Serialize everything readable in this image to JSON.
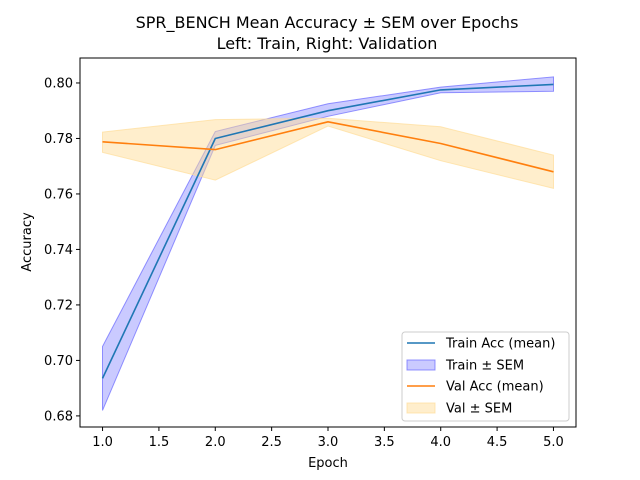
{
  "chart_data": {
    "type": "line",
    "title": "SPR_BENCH Mean Accuracy ± SEM over Epochs",
    "subtitle": "Left: Train, Right: Validation",
    "xlabel": "Epoch",
    "ylabel": "Accuracy",
    "xlim": [
      0.8,
      5.2
    ],
    "ylim": [
      0.676,
      0.809
    ],
    "xticks": [
      1.0,
      1.5,
      2.0,
      2.5,
      3.0,
      3.5,
      4.0,
      4.5,
      5.0
    ],
    "xtick_labels": [
      "1.0",
      "1.5",
      "2.0",
      "2.5",
      "3.0",
      "3.5",
      "4.0",
      "4.5",
      "5.0"
    ],
    "yticks": [
      0.68,
      0.7,
      0.72,
      0.74,
      0.76,
      0.78,
      0.8
    ],
    "ytick_labels": [
      "0.68",
      "0.70",
      "0.72",
      "0.74",
      "0.76",
      "0.78",
      "0.80"
    ],
    "grid": false,
    "legend_position": "lower-right",
    "x": [
      1,
      2,
      3,
      4,
      5
    ],
    "series": [
      {
        "name": "Train Acc (mean)",
        "band_name": "Train ± SEM",
        "values": [
          0.6935,
          0.78,
          0.79,
          0.7975,
          0.7995
        ],
        "lower": [
          0.682,
          0.7775,
          0.788,
          0.7965,
          0.797
        ],
        "upper": [
          0.705,
          0.7825,
          0.7925,
          0.7985,
          0.8022
        ],
        "color": "#1f77b4",
        "band_color": "#6666ff"
      },
      {
        "name": "Val Acc (mean)",
        "band_name": "Val ± SEM",
        "values": [
          0.7788,
          0.776,
          0.786,
          0.7782,
          0.768
        ],
        "lower": [
          0.775,
          0.765,
          0.7845,
          0.772,
          0.762
        ],
        "upper": [
          0.7823,
          0.7868,
          0.7873,
          0.7842,
          0.774
        ],
        "color": "#ff7f0e",
        "band_color": "#ffdd99"
      }
    ]
  }
}
